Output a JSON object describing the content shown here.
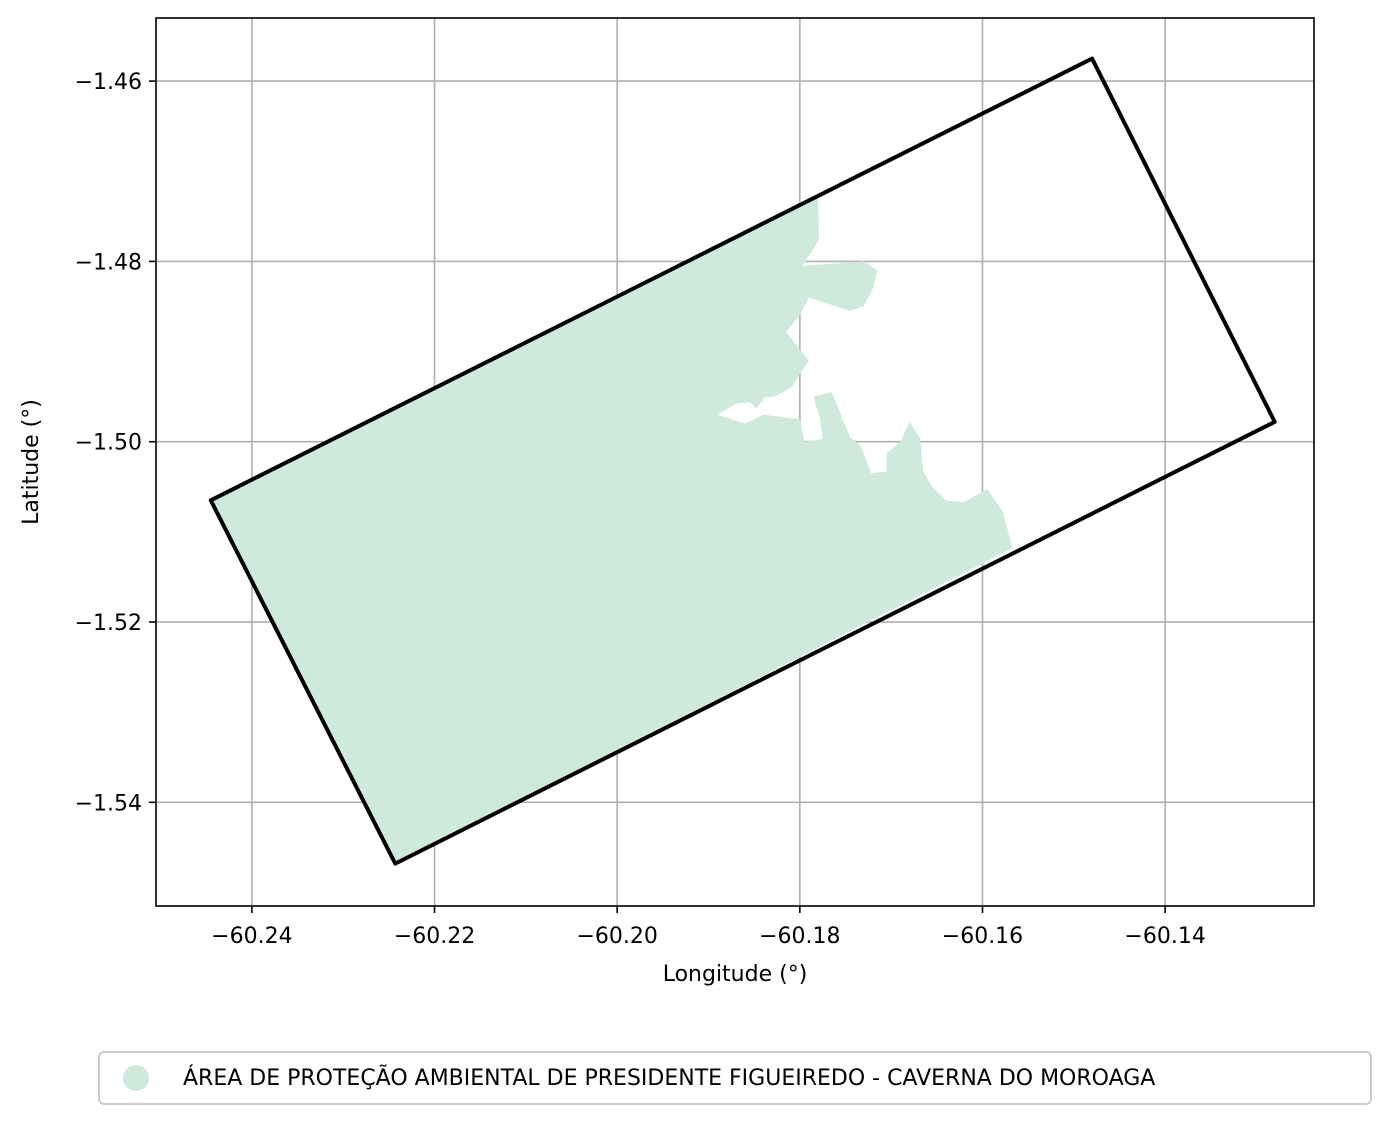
{
  "chart_data": {
    "type": "map",
    "xlabel": "Longitude (°)",
    "ylabel": "Latitude (°)",
    "xlim": [
      -60.2505,
      -60.1237
    ],
    "ylim": [
      -1.5515,
      -1.453
    ],
    "xticks": [
      -60.24,
      -60.22,
      -60.2,
      -60.18,
      -60.16,
      -60.14
    ],
    "xtick_labels": [
      "−60.24",
      "−60.22",
      "−60.20",
      "−60.18",
      "−60.16",
      "−60.14"
    ],
    "yticks": [
      -1.46,
      -1.48,
      -1.5,
      -1.52,
      -1.54
    ],
    "ytick_labels": [
      "−1.46",
      "−1.48",
      "−1.50",
      "−1.52",
      "−1.54"
    ],
    "grid": true,
    "legend_position": "bottom-center",
    "fill_color": "#cfeadd",
    "outline_color": "#000000",
    "legend": [
      {
        "label": "ÁREA DE PROTEÇÃO AMBIENTAL DE PRESIDENTE FIGUEIREDO - CAVERNA DO MOROAGA",
        "color": "#cfeadd"
      }
    ],
    "outline_polygon": [
      [
        -60.2445,
        -1.5065
      ],
      [
        -60.148,
        -1.4575
      ],
      [
        -60.128,
        -1.4978
      ],
      [
        -60.2243,
        -1.5468
      ]
    ],
    "protected_area_polygons": [
      [
        [
          -60.2445,
          -1.5065
        ],
        [
          -60.178,
          -1.4728
        ],
        [
          -60.1779,
          -1.4776
        ],
        [
          -60.1797,
          -1.4805
        ],
        [
          -60.173,
          -1.48
        ],
        [
          -60.1715,
          -1.481
        ],
        [
          -60.172,
          -1.483
        ],
        [
          -60.173,
          -1.485
        ],
        [
          -60.1745,
          -1.4855
        ],
        [
          -60.176,
          -1.485
        ],
        [
          -60.179,
          -1.484
        ],
        [
          -60.18,
          -1.486
        ],
        [
          -60.1815,
          -1.4878
        ],
        [
          -60.179,
          -1.491
        ],
        [
          -60.18,
          -1.4925
        ],
        [
          -60.1808,
          -1.4938
        ],
        [
          -60.1818,
          -1.4945
        ],
        [
          -60.1828,
          -1.495
        ],
        [
          -60.1838,
          -1.4951
        ],
        [
          -60.1848,
          -1.4963
        ],
        [
          -60.1855,
          -1.4956
        ],
        [
          -60.187,
          -1.4958
        ],
        [
          -60.189,
          -1.497
        ],
        [
          -60.186,
          -1.498
        ],
        [
          -60.184,
          -1.497
        ],
        [
          -60.18,
          -1.4975
        ],
        [
          -60.1795,
          -1.5
        ],
        [
          -60.1775,
          -1.4997
        ],
        [
          -60.1778,
          -1.4975
        ],
        [
          -60.1785,
          -1.495
        ],
        [
          -60.1765,
          -1.4945
        ],
        [
          -60.1745,
          -1.4995
        ],
        [
          -60.1733,
          -1.5005
        ],
        [
          -60.1722,
          -1.5035
        ],
        [
          -60.1705,
          -1.5033
        ],
        [
          -60.1705,
          -1.5013
        ],
        [
          -60.169,
          -1.5
        ],
        [
          -60.168,
          -1.4978
        ],
        [
          -60.1668,
          -1.4997
        ],
        [
          -60.1665,
          -1.5032
        ],
        [
          -60.1655,
          -1.505
        ],
        [
          -60.164,
          -1.5065
        ],
        [
          -60.162,
          -1.5067
        ],
        [
          -60.1595,
          -1.5052
        ],
        [
          -60.1578,
          -1.5077
        ],
        [
          -60.1567,
          -1.5118
        ],
        [
          -60.2243,
          -1.5468
        ]
      ]
    ]
  }
}
